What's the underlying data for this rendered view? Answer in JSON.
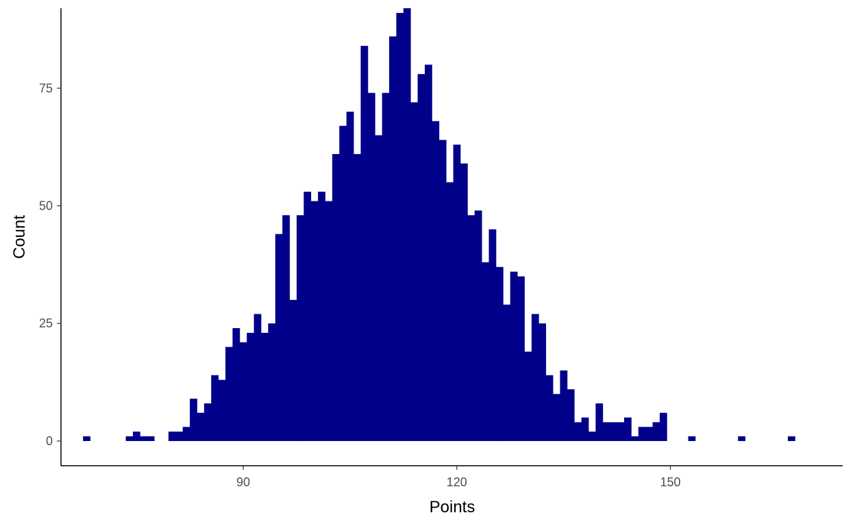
{
  "chart_data": {
    "type": "bar",
    "subtype": "histogram",
    "title": "",
    "xlabel": "Points",
    "ylabel": "Count",
    "xlim": [
      64.4,
      174.2
    ],
    "ylim": [
      -5.25,
      92
    ],
    "x_ticks": [
      90,
      120,
      150
    ],
    "y_ticks": [
      0,
      25,
      50,
      75
    ],
    "grid": false,
    "legend": "none",
    "bar_color": "#00008B",
    "bin_width": 1,
    "bins": [
      {
        "x": 68,
        "count": 1
      },
      {
        "x": 74,
        "count": 1
      },
      {
        "x": 75,
        "count": 2
      },
      {
        "x": 76,
        "count": 1
      },
      {
        "x": 77,
        "count": 1
      },
      {
        "x": 80,
        "count": 2
      },
      {
        "x": 81,
        "count": 2
      },
      {
        "x": 82,
        "count": 3
      },
      {
        "x": 83,
        "count": 9
      },
      {
        "x": 84,
        "count": 6
      },
      {
        "x": 85,
        "count": 8
      },
      {
        "x": 86,
        "count": 14
      },
      {
        "x": 87,
        "count": 13
      },
      {
        "x": 88,
        "count": 20
      },
      {
        "x": 89,
        "count": 24
      },
      {
        "x": 90,
        "count": 21
      },
      {
        "x": 91,
        "count": 23
      },
      {
        "x": 92,
        "count": 27
      },
      {
        "x": 93,
        "count": 23
      },
      {
        "x": 94,
        "count": 25
      },
      {
        "x": 95,
        "count": 44
      },
      {
        "x": 96,
        "count": 48
      },
      {
        "x": 97,
        "count": 30
      },
      {
        "x": 98,
        "count": 48
      },
      {
        "x": 99,
        "count": 53
      },
      {
        "x": 100,
        "count": 51
      },
      {
        "x": 101,
        "count": 53
      },
      {
        "x": 102,
        "count": 51
      },
      {
        "x": 103,
        "count": 61
      },
      {
        "x": 104,
        "count": 67
      },
      {
        "x": 105,
        "count": 70
      },
      {
        "x": 106,
        "count": 61
      },
      {
        "x": 107,
        "count": 84
      },
      {
        "x": 108,
        "count": 74
      },
      {
        "x": 109,
        "count": 65
      },
      {
        "x": 110,
        "count": 74
      },
      {
        "x": 111,
        "count": 86
      },
      {
        "x": 112,
        "count": 91
      },
      {
        "x": 113,
        "count": 92
      },
      {
        "x": 114,
        "count": 72
      },
      {
        "x": 115,
        "count": 78
      },
      {
        "x": 116,
        "count": 80
      },
      {
        "x": 117,
        "count": 68
      },
      {
        "x": 118,
        "count": 64
      },
      {
        "x": 119,
        "count": 55
      },
      {
        "x": 120,
        "count": 63
      },
      {
        "x": 121,
        "count": 59
      },
      {
        "x": 122,
        "count": 48
      },
      {
        "x": 123,
        "count": 49
      },
      {
        "x": 124,
        "count": 38
      },
      {
        "x": 125,
        "count": 45
      },
      {
        "x": 126,
        "count": 37
      },
      {
        "x": 127,
        "count": 29
      },
      {
        "x": 128,
        "count": 36
      },
      {
        "x": 129,
        "count": 35
      },
      {
        "x": 130,
        "count": 19
      },
      {
        "x": 131,
        "count": 27
      },
      {
        "x": 132,
        "count": 25
      },
      {
        "x": 133,
        "count": 14
      },
      {
        "x": 134,
        "count": 10
      },
      {
        "x": 135,
        "count": 15
      },
      {
        "x": 136,
        "count": 11
      },
      {
        "x": 137,
        "count": 4
      },
      {
        "x": 138,
        "count": 5
      },
      {
        "x": 139,
        "count": 2
      },
      {
        "x": 140,
        "count": 8
      },
      {
        "x": 141,
        "count": 4
      },
      {
        "x": 142,
        "count": 4
      },
      {
        "x": 143,
        "count": 4
      },
      {
        "x": 144,
        "count": 5
      },
      {
        "x": 145,
        "count": 1
      },
      {
        "x": 146,
        "count": 3
      },
      {
        "x": 147,
        "count": 3
      },
      {
        "x": 148,
        "count": 4
      },
      {
        "x": 149,
        "count": 6
      },
      {
        "x": 153,
        "count": 1
      },
      {
        "x": 160,
        "count": 1
      },
      {
        "x": 167,
        "count": 1
      }
    ]
  }
}
